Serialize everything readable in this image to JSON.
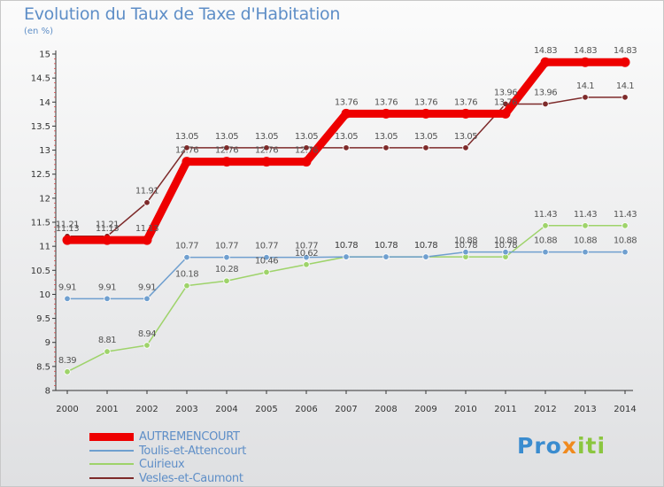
{
  "title": "Evolution du Taux de Taxe d'Habitation",
  "subtitle": "(en %)",
  "logo": {
    "part1": "Pro",
    "part2": "x",
    "part3": "iti"
  },
  "chart_data": {
    "type": "line",
    "x": [
      "2000",
      "2001",
      "2002",
      "2003",
      "2004",
      "2005",
      "2006",
      "2007",
      "2008",
      "2009",
      "2010",
      "2011",
      "2012",
      "2013",
      "2014"
    ],
    "ylim": [
      8,
      15
    ],
    "yticks": [
      "8",
      "8.5",
      "9",
      "9.5",
      "10",
      "10.5",
      "11",
      "11.5",
      "12",
      "12.5",
      "13",
      "13.5",
      "14",
      "14.5",
      "15"
    ],
    "grid": false,
    "legend_position": "bottom-left",
    "series": [
      {
        "name": "AUTREMENCOURT",
        "color": "#ee0000",
        "values": [
          11.13,
          11.13,
          11.13,
          12.76,
          12.76,
          12.76,
          12.76,
          13.76,
          13.76,
          13.76,
          13.76,
          13.76,
          14.83,
          14.83,
          14.83
        ],
        "labels": [
          "11.13",
          "11.13",
          "11.13",
          "12.76",
          "12.76",
          "12.76",
          "12.76",
          "13.76",
          "13.76",
          "13.76",
          "13.76",
          "13.76",
          "14.83",
          "14.83",
          "14.83"
        ]
      },
      {
        "name": "Toulis-et-Attencourt",
        "color": "#6f9fcf",
        "values": [
          9.91,
          9.91,
          9.91,
          10.77,
          10.77,
          10.77,
          10.77,
          10.78,
          10.78,
          10.78,
          10.88,
          10.88,
          10.88,
          10.88,
          10.88
        ],
        "labels": [
          "9.91",
          "9.91",
          "9.91",
          "10.77",
          "10.77",
          "10.77",
          "10.77",
          "10.78",
          "10.78",
          "10.78",
          "10.88",
          "10.88",
          "10.88",
          "10.88",
          "10.88"
        ]
      },
      {
        "name": "Cuirieux",
        "color": "#9ed36a",
        "values": [
          8.39,
          8.81,
          8.94,
          10.18,
          10.28,
          10.46,
          10.62,
          10.78,
          10.78,
          10.78,
          10.78,
          10.78,
          11.43,
          11.43,
          11.43
        ],
        "labels": [
          "8.39",
          "8.81",
          "8.94",
          "10.18",
          "10.28",
          "10.46",
          "10.62",
          "10.78",
          "10.78",
          "10.78",
          "10.78",
          "10.78",
          "11.43",
          "11.43",
          "11.43"
        ]
      },
      {
        "name": "Vesles-et-Caumont",
        "color": "#7d2a2a",
        "values": [
          11.21,
          11.21,
          11.91,
          13.05,
          13.05,
          13.05,
          13.05,
          13.05,
          13.05,
          13.05,
          13.05,
          13.96,
          13.96,
          14.1,
          14.1
        ],
        "labels": [
          "11.21",
          "11.21",
          "11.91",
          "13.05",
          "13.05",
          "13.05",
          "13.05",
          "13.05",
          "13.05",
          "13.05",
          "13.05",
          "13.96",
          "13.96",
          "14.1",
          "14.1"
        ]
      }
    ]
  }
}
